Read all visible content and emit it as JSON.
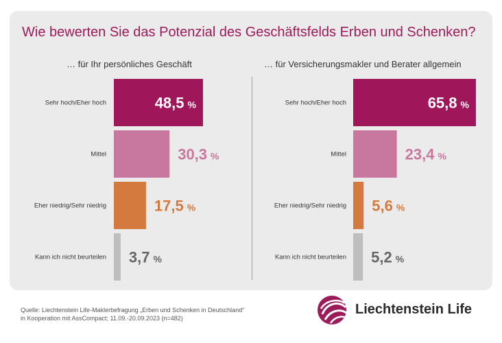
{
  "title": "Wie bewerten Sie das Potenzial des Geschäftsfelds Erben und Schenken?",
  "colors": {
    "accent": "#9c1b5a",
    "high": "#a0165a",
    "mid": "#c8789e",
    "low": "#d47a3e",
    "none": "#bebebe",
    "none_text": "#666666"
  },
  "chart_data": [
    {
      "type": "bar",
      "orientation": "horizontal",
      "title": "… für Ihr persönliches Geschäft",
      "categories": [
        "Sehr hoch/Eher hoch",
        "Mittel",
        "Eher niedrig/Sehr niedrig",
        "Kann ich nicht beurteilen"
      ],
      "values": [
        48.5,
        30.3,
        17.5,
        3.7
      ],
      "labels": [
        "48,5",
        "30,3",
        "17,5",
        "3,7"
      ],
      "unit": "%",
      "xlim": [
        0,
        100
      ]
    },
    {
      "type": "bar",
      "orientation": "horizontal",
      "title": "… für Versicherungsmakler und Berater allgemein",
      "categories": [
        "Sehr hoch/Eher hoch",
        "Mittel",
        "Eher niedrig/Sehr niedrig",
        "Kann ich nicht beurteilen"
      ],
      "values": [
        65.8,
        23.4,
        5.6,
        5.2
      ],
      "labels": [
        "65,8",
        "23,4",
        "5,6",
        "5,2"
      ],
      "unit": "%",
      "xlim": [
        0,
        100
      ]
    }
  ],
  "source": {
    "line1": "Quelle: Liechtenstein Life-Maklerbefragung „Erben und Schenken in Deutschland“",
    "line2": "in Kooperation mit AssCompact; 11.09.-20.09.2023 (n=482)"
  },
  "logo": {
    "name": "Liechtenstein Life"
  }
}
